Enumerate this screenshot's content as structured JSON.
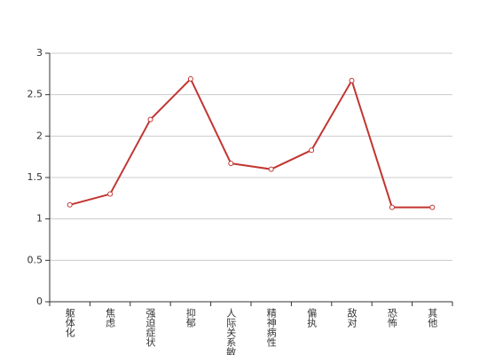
{
  "chart_data": {
    "type": "line",
    "categories": [
      "躯体化",
      "焦虑",
      "强迫症状",
      "抑郁",
      "人际关系敏感",
      "精神病性",
      "偏执",
      "敌对",
      "恐怖",
      "其他"
    ],
    "series": [
      {
        "color": "#c23531",
        "values": [
          1.17,
          1.3,
          2.2,
          2.69,
          1.67,
          1.6,
          1.83,
          2.67,
          1.14,
          1.14
        ]
      }
    ],
    "ylim": [
      0,
      3
    ],
    "yticks": [
      0,
      0.5,
      1,
      1.5,
      2,
      2.5,
      3
    ],
    "grid": true
  }
}
